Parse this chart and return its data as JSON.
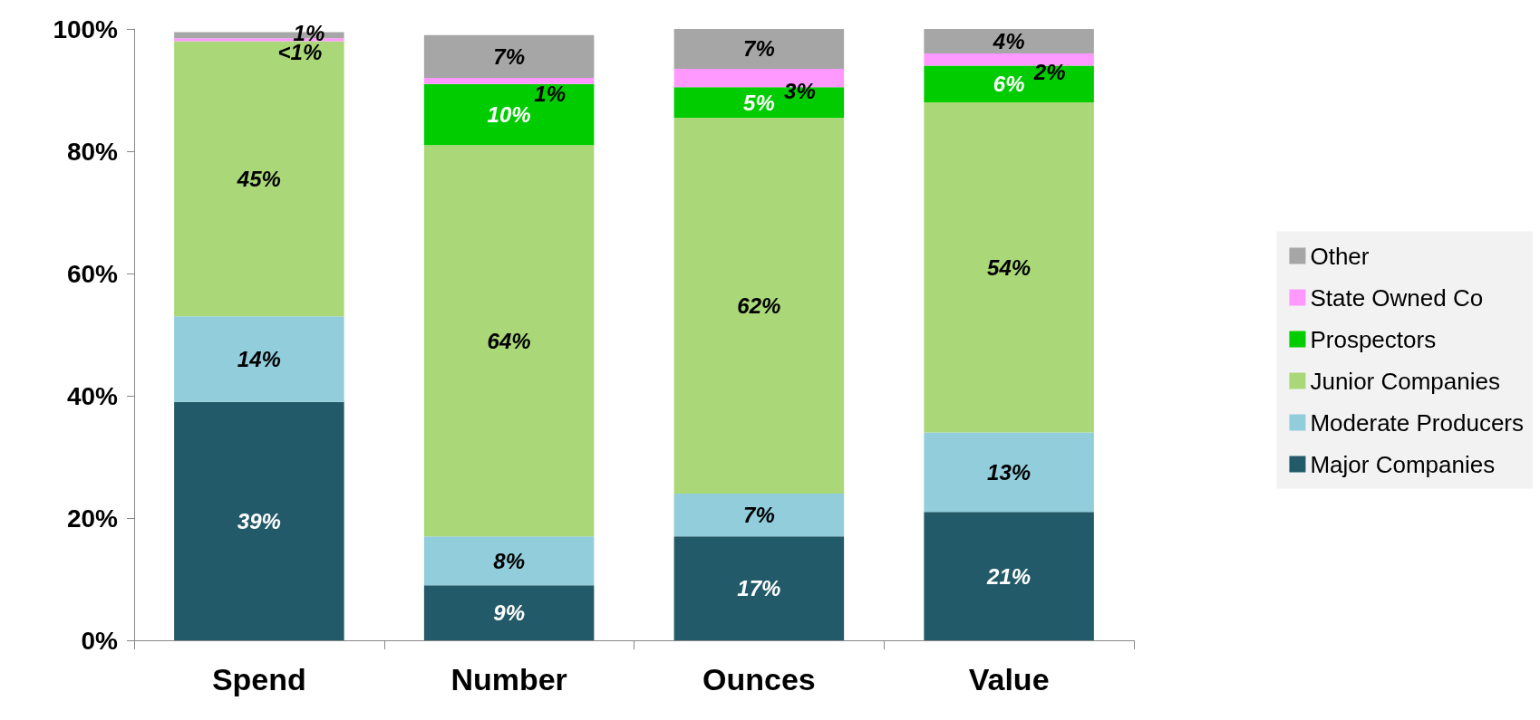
{
  "chart_data": {
    "type": "bar",
    "stacked": true,
    "categories": [
      "Spend",
      "Number",
      "Ounces",
      "Value"
    ],
    "ylim": [
      0,
      100
    ],
    "yticks": [
      {
        "value": 0,
        "label": "0%"
      },
      {
        "value": 20,
        "label": "20%"
      },
      {
        "value": 40,
        "label": "40%"
      },
      {
        "value": 60,
        "label": "60%"
      },
      {
        "value": 80,
        "label": "80%"
      },
      {
        "value": 100,
        "label": "100%"
      }
    ],
    "grid": false,
    "legend": "right",
    "series": [
      {
        "name": "Major Companies",
        "color": "#235a69",
        "values": [
          39,
          9,
          17,
          21
        ],
        "value_labels": [
          "39%",
          "9%",
          "17%",
          "21%"
        ]
      },
      {
        "name": "Moderate Producers",
        "color": "#92cddc",
        "values": [
          14,
          8,
          7,
          13
        ],
        "value_labels": [
          "14%",
          "8%",
          "7%",
          "13%"
        ]
      },
      {
        "name": "Junior Companies",
        "color": "#aad878",
        "values": [
          45,
          64,
          61.5,
          54
        ],
        "value_labels": [
          "45%",
          "64%",
          "62%",
          "54%"
        ]
      },
      {
        "name": "Prospectors",
        "color": "#00cc00",
        "values": [
          0,
          10,
          5,
          6
        ],
        "value_labels": [
          null,
          "10%",
          "5%",
          "6%"
        ]
      },
      {
        "name": "State Owned Co",
        "color": "#ff99ff",
        "values": [
          0.5,
          1,
          3,
          2
        ],
        "value_labels": [
          "<1%",
          "1%",
          "3%",
          "2%"
        ]
      },
      {
        "name": "Other",
        "color": "#a6a6a6",
        "values": [
          1,
          7,
          6.5,
          4
        ],
        "value_labels": [
          "1%",
          "7%",
          "7%",
          "4%"
        ]
      }
    ]
  }
}
